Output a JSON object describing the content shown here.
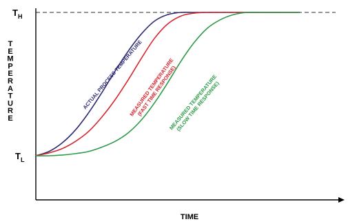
{
  "chart_data": {
    "type": "line",
    "title": "",
    "xlabel": "TIME",
    "ylabel": "TEMPERATURE",
    "y_ticks": {
      "high": {
        "main": "T",
        "sub": "H"
      },
      "low": {
        "main": "T",
        "sub": "L"
      }
    },
    "reference_line": {
      "label": "T_H",
      "value": 1,
      "style": "dashed"
    },
    "xlim": [
      0,
      1
    ],
    "ylim": [
      0,
      1
    ],
    "series": [
      {
        "name": "",
        "label_lines": [
          "ACTUAL PROCESS TEMPERATURE"
        ],
        "color": "#2b2a6e",
        "x": [
          0.0,
          0.05,
          0.1,
          0.15,
          0.2,
          0.25,
          0.3,
          0.35,
          0.4,
          0.45,
          0.5,
          0.55,
          0.6,
          0.65,
          0.7,
          0.75,
          0.8,
          0.9,
          1.0
        ],
        "y": [
          0.0,
          0.03,
          0.09,
          0.18,
          0.3,
          0.44,
          0.59,
          0.73,
          0.85,
          0.94,
          0.985,
          1.0,
          1.0,
          1.0,
          1.0,
          1.0,
          1.0,
          1.0,
          1.0
        ]
      },
      {
        "name": "",
        "label_lines": [
          "MEASURED TEMPERATURE",
          "(FAST TIME RESPONSE)"
        ],
        "color": "#d7262f",
        "x": [
          0.0,
          0.05,
          0.1,
          0.15,
          0.2,
          0.25,
          0.3,
          0.35,
          0.4,
          0.45,
          0.5,
          0.55,
          0.6,
          0.65,
          0.7,
          0.75,
          0.8,
          0.9,
          1.0
        ],
        "y": [
          0.0,
          0.02,
          0.05,
          0.1,
          0.17,
          0.27,
          0.39,
          0.53,
          0.68,
          0.82,
          0.92,
          0.975,
          0.995,
          1.0,
          1.0,
          1.0,
          1.0,
          1.0,
          1.0
        ]
      },
      {
        "name": "",
        "label_lines": [
          "MEASURED TEMPERATURE",
          "(SLOW TIME RESPONSE)"
        ],
        "color": "#2c9a48",
        "x": [
          0.0,
          0.05,
          0.1,
          0.15,
          0.2,
          0.25,
          0.3,
          0.35,
          0.4,
          0.45,
          0.5,
          0.55,
          0.6,
          0.65,
          0.7,
          0.75,
          0.8,
          0.85,
          0.9,
          1.0
        ],
        "y": [
          0.0,
          0.0,
          0.005,
          0.015,
          0.03,
          0.06,
          0.1,
          0.16,
          0.25,
          0.37,
          0.51,
          0.66,
          0.79,
          0.89,
          0.95,
          0.985,
          1.0,
          1.0,
          1.0,
          1.0
        ]
      }
    ],
    "grid": false,
    "legend": "none"
  }
}
